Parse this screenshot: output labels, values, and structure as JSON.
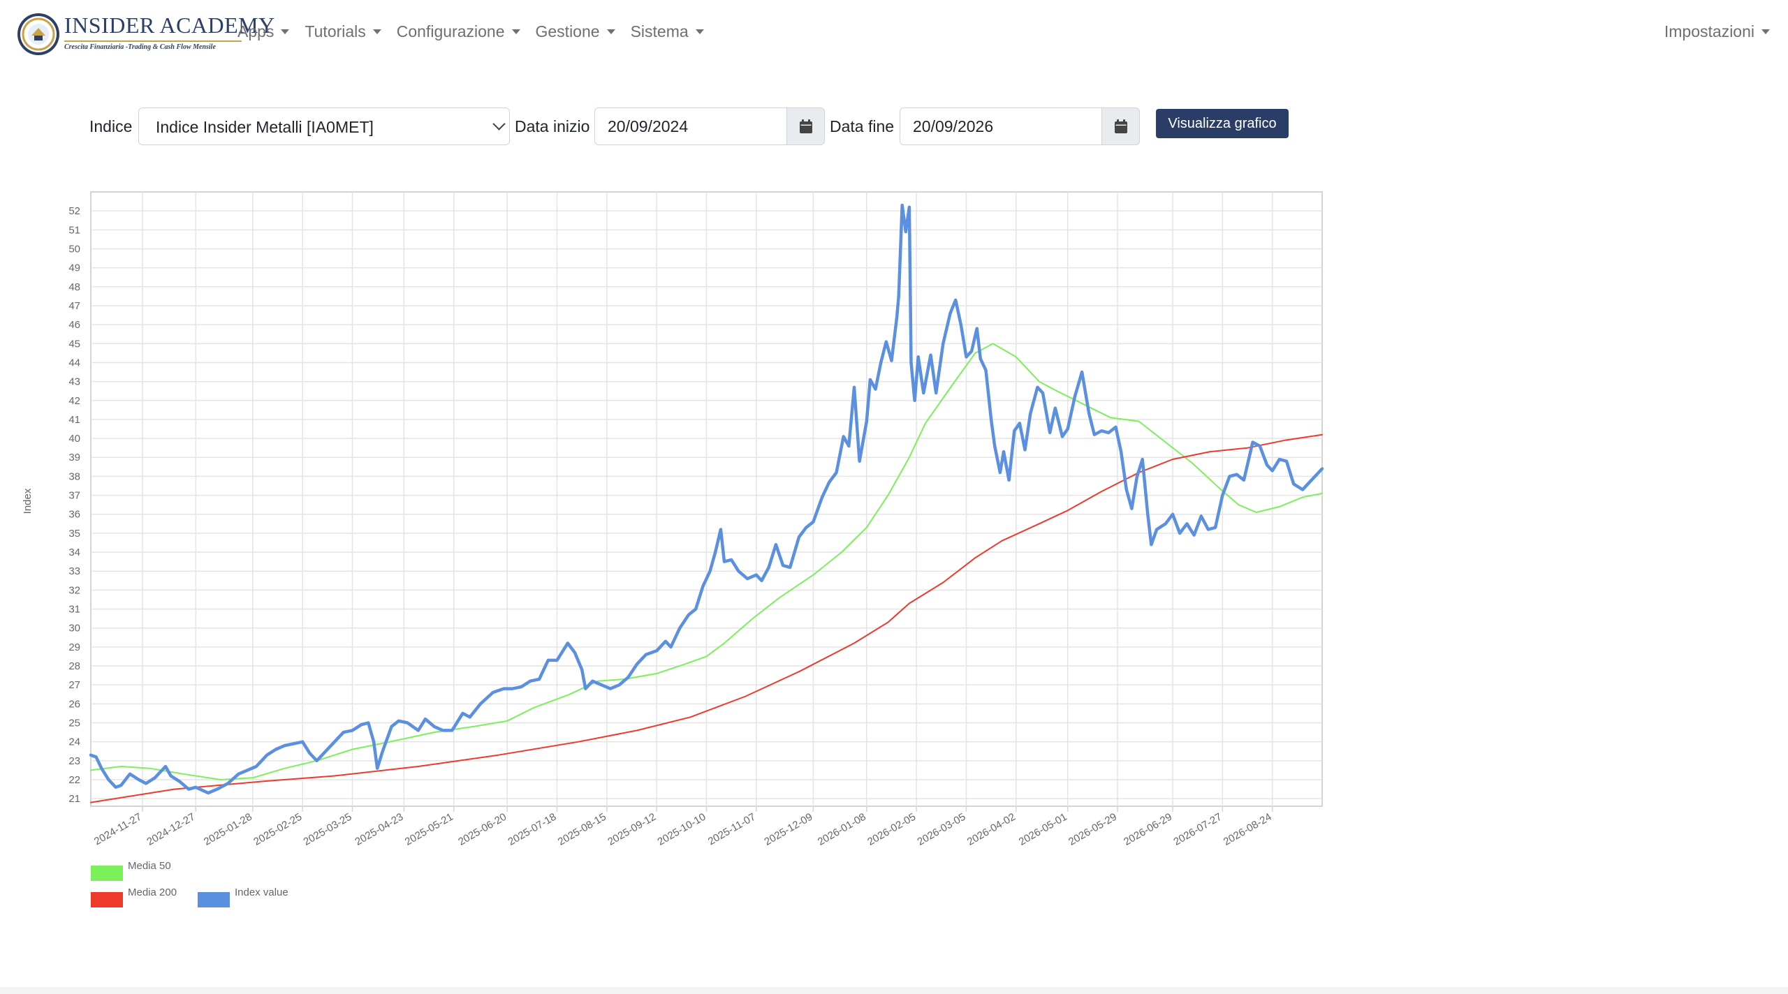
{
  "brand": {
    "name": "INSIDER ACADEMY",
    "tagline": "Crescita Finanziaria -Trading & Cash Flow Mensile"
  },
  "nav": {
    "items": [
      {
        "label": "Apps"
      },
      {
        "label": "Tutorials"
      },
      {
        "label": "Configurazione"
      },
      {
        "label": "Gestione"
      },
      {
        "label": "Sistema"
      }
    ],
    "right": {
      "label": "Impostazioni"
    }
  },
  "form": {
    "indice_label": "Indice",
    "indice_value": "Indice Insider Metalli [IA0MET]",
    "start_label": "Data inizio",
    "start_value": "20/09/2024",
    "end_label": "Data fine",
    "end_value": "20/09/2026",
    "submit_label": "Visualizza grafico"
  },
  "icons": {
    "calendar": "calendar-icon",
    "caret": "caret-down-icon",
    "select": "chevron-down-icon",
    "logo": "academy-seal-logo"
  },
  "colors": {
    "media50": "#7cf05a",
    "media200": "#ee3a2a",
    "index": "#5b8fe0",
    "button": "#2a3d66"
  },
  "chart_data": {
    "type": "line",
    "title": "",
    "ylabel": "Index",
    "ylim": [
      20.6,
      53
    ],
    "yticks": [
      21,
      22,
      23,
      24,
      25,
      26,
      27,
      28,
      29,
      30,
      31,
      32,
      33,
      34,
      35,
      36,
      37,
      38,
      39,
      40,
      41,
      42,
      43,
      44,
      45,
      46,
      47,
      48,
      49,
      50,
      51,
      52
    ],
    "xlim": [
      "2024-10-29",
      "2026-09-21"
    ],
    "x_ticks": [
      "2024-11-27",
      "2024-12-27",
      "2025-01-28",
      "2025-02-25",
      "2025-03-25",
      "2025-04-23",
      "2025-05-21",
      "2025-06-20",
      "2025-07-18",
      "2025-08-15",
      "2025-09-12",
      "2025-10-10",
      "2025-11-07",
      "2025-12-09",
      "2026-01-08",
      "2026-02-05",
      "2026-03-05",
      "2026-04-02",
      "2026-05-01",
      "2026-05-29",
      "2026-06-29",
      "2026-07-27",
      "2026-08-24"
    ],
    "grid": true,
    "legend_position": "bottom-left",
    "series": [
      {
        "name": "Media 50",
        "color": "#7cf05a",
        "points": [
          [
            "2024-10-29",
            22.5
          ],
          [
            "2024-11-15",
            22.7
          ],
          [
            "2024-12-01",
            22.6
          ],
          [
            "2024-12-20",
            22.3
          ],
          [
            "2025-01-10",
            22.0
          ],
          [
            "2025-01-28",
            22.1
          ],
          [
            "2025-02-15",
            22.6
          ],
          [
            "2025-03-05",
            23.0
          ],
          [
            "2025-03-25",
            23.6
          ],
          [
            "2025-04-15",
            24.0
          ],
          [
            "2025-05-10",
            24.5
          ],
          [
            "2025-06-01",
            24.8
          ],
          [
            "2025-06-20",
            25.1
          ],
          [
            "2025-07-05",
            25.8
          ],
          [
            "2025-07-25",
            26.5
          ],
          [
            "2025-08-10",
            27.2
          ],
          [
            "2025-08-25",
            27.3
          ],
          [
            "2025-09-12",
            27.6
          ],
          [
            "2025-09-28",
            28.1
          ],
          [
            "2025-10-10",
            28.5
          ],
          [
            "2025-10-20",
            29.2
          ],
          [
            "2025-11-05",
            30.5
          ],
          [
            "2025-11-20",
            31.6
          ],
          [
            "2025-12-09",
            32.8
          ],
          [
            "2025-12-25",
            34.0
          ],
          [
            "2026-01-08",
            35.3
          ],
          [
            "2026-01-20",
            37.0
          ],
          [
            "2026-02-01",
            39.0
          ],
          [
            "2026-02-10",
            40.8
          ],
          [
            "2026-02-25",
            42.8
          ],
          [
            "2026-03-10",
            44.5
          ],
          [
            "2026-03-20",
            45.0
          ],
          [
            "2026-04-02",
            44.3
          ],
          [
            "2026-04-15",
            43.0
          ],
          [
            "2026-04-25",
            42.5
          ],
          [
            "2026-05-10",
            41.8
          ],
          [
            "2026-05-25",
            41.1
          ],
          [
            "2026-06-10",
            40.9
          ],
          [
            "2026-06-25",
            39.8
          ],
          [
            "2026-07-10",
            38.7
          ],
          [
            "2026-07-25",
            37.4
          ],
          [
            "2026-08-05",
            36.5
          ],
          [
            "2026-08-15",
            36.1
          ],
          [
            "2026-08-28",
            36.4
          ],
          [
            "2026-09-10",
            36.9
          ],
          [
            "2026-09-21",
            37.1
          ]
        ]
      },
      {
        "name": "Media 200",
        "color": "#ee3a2a",
        "points": [
          [
            "2024-10-29",
            20.8
          ],
          [
            "2024-12-15",
            21.5
          ],
          [
            "2025-02-01",
            21.9
          ],
          [
            "2025-03-15",
            22.2
          ],
          [
            "2025-05-01",
            22.7
          ],
          [
            "2025-06-15",
            23.3
          ],
          [
            "2025-07-30",
            24.0
          ],
          [
            "2025-09-01",
            24.6
          ],
          [
            "2025-10-01",
            25.3
          ],
          [
            "2025-11-01",
            26.4
          ],
          [
            "2025-12-01",
            27.7
          ],
          [
            "2026-01-01",
            29.2
          ],
          [
            "2026-01-20",
            30.3
          ],
          [
            "2026-02-01",
            31.3
          ],
          [
            "2026-02-20",
            32.4
          ],
          [
            "2026-03-10",
            33.7
          ],
          [
            "2026-03-25",
            34.6
          ],
          [
            "2026-04-15",
            35.5
          ],
          [
            "2026-05-01",
            36.2
          ],
          [
            "2026-05-20",
            37.2
          ],
          [
            "2026-06-10",
            38.2
          ],
          [
            "2026-06-29",
            38.9
          ],
          [
            "2026-07-20",
            39.3
          ],
          [
            "2026-08-10",
            39.5
          ],
          [
            "2026-08-31",
            39.9
          ],
          [
            "2026-09-21",
            40.2
          ]
        ]
      },
      {
        "name": "Index value",
        "color": "#5b8fe0",
        "points": [
          [
            "2024-10-29",
            23.3
          ],
          [
            "2024-11-01",
            23.2
          ],
          [
            "2024-11-04",
            22.6
          ],
          [
            "2024-11-08",
            22.0
          ],
          [
            "2024-11-12",
            21.6
          ],
          [
            "2024-11-15",
            21.7
          ],
          [
            "2024-11-20",
            22.3
          ],
          [
            "2024-11-25",
            22.0
          ],
          [
            "2024-11-29",
            21.8
          ],
          [
            "2024-12-04",
            22.1
          ],
          [
            "2024-12-10",
            22.7
          ],
          [
            "2024-12-13",
            22.2
          ],
          [
            "2024-12-18",
            21.9
          ],
          [
            "2024-12-23",
            21.5
          ],
          [
            "2024-12-27",
            21.6
          ],
          [
            "2025-01-03",
            21.3
          ],
          [
            "2025-01-08",
            21.5
          ],
          [
            "2025-01-14",
            21.8
          ],
          [
            "2025-01-20",
            22.3
          ],
          [
            "2025-01-25",
            22.5
          ],
          [
            "2025-01-30",
            22.7
          ],
          [
            "2025-02-05",
            23.3
          ],
          [
            "2025-02-10",
            23.6
          ],
          [
            "2025-02-15",
            23.8
          ],
          [
            "2025-02-20",
            23.9
          ],
          [
            "2025-02-25",
            24.0
          ],
          [
            "2025-03-01",
            23.4
          ],
          [
            "2025-03-05",
            23.0
          ],
          [
            "2025-03-10",
            23.5
          ],
          [
            "2025-03-15",
            24.0
          ],
          [
            "2025-03-20",
            24.5
          ],
          [
            "2025-03-25",
            24.6
          ],
          [
            "2025-03-30",
            24.9
          ],
          [
            "2025-04-03",
            25.0
          ],
          [
            "2025-04-06",
            24.0
          ],
          [
            "2025-04-08",
            22.6
          ],
          [
            "2025-04-11",
            23.5
          ],
          [
            "2025-04-16",
            24.8
          ],
          [
            "2025-04-20",
            25.1
          ],
          [
            "2025-04-25",
            25.0
          ],
          [
            "2025-05-01",
            24.6
          ],
          [
            "2025-05-05",
            25.2
          ],
          [
            "2025-05-10",
            24.8
          ],
          [
            "2025-05-15",
            24.6
          ],
          [
            "2025-05-20",
            24.6
          ],
          [
            "2025-05-26",
            25.5
          ],
          [
            "2025-05-30",
            25.3
          ],
          [
            "2025-06-05",
            26.0
          ],
          [
            "2025-06-12",
            26.6
          ],
          [
            "2025-06-18",
            26.8
          ],
          [
            "2025-06-23",
            26.8
          ],
          [
            "2025-06-28",
            26.9
          ],
          [
            "2025-07-03",
            27.2
          ],
          [
            "2025-07-08",
            27.3
          ],
          [
            "2025-07-13",
            28.3
          ],
          [
            "2025-07-18",
            28.3
          ],
          [
            "2025-07-24",
            29.2
          ],
          [
            "2025-07-28",
            28.7
          ],
          [
            "2025-08-01",
            27.8
          ],
          [
            "2025-08-03",
            26.8
          ],
          [
            "2025-08-07",
            27.2
          ],
          [
            "2025-08-12",
            27.0
          ],
          [
            "2025-08-17",
            26.8
          ],
          [
            "2025-08-22",
            27.0
          ],
          [
            "2025-08-27",
            27.4
          ],
          [
            "2025-09-01",
            28.1
          ],
          [
            "2025-09-06",
            28.6
          ],
          [
            "2025-09-12",
            28.8
          ],
          [
            "2025-09-17",
            29.3
          ],
          [
            "2025-09-20",
            29.0
          ],
          [
            "2025-09-25",
            30.0
          ],
          [
            "2025-09-30",
            30.7
          ],
          [
            "2025-10-04",
            31.0
          ],
          [
            "2025-10-08",
            32.2
          ],
          [
            "2025-10-12",
            33.0
          ],
          [
            "2025-10-15",
            34.0
          ],
          [
            "2025-10-18",
            35.2
          ],
          [
            "2025-10-20",
            33.5
          ],
          [
            "2025-10-24",
            33.6
          ],
          [
            "2025-10-28",
            33.0
          ],
          [
            "2025-11-02",
            32.6
          ],
          [
            "2025-11-07",
            32.8
          ],
          [
            "2025-11-10",
            32.5
          ],
          [
            "2025-11-14",
            33.2
          ],
          [
            "2025-11-18",
            34.4
          ],
          [
            "2025-11-22",
            33.3
          ],
          [
            "2025-11-26",
            33.2
          ],
          [
            "2025-12-01",
            34.8
          ],
          [
            "2025-12-05",
            35.3
          ],
          [
            "2025-12-09",
            35.6
          ],
          [
            "2025-12-14",
            36.9
          ],
          [
            "2025-12-18",
            37.7
          ],
          [
            "2025-12-22",
            38.2
          ],
          [
            "2025-12-26",
            40.1
          ],
          [
            "2025-12-29",
            39.6
          ],
          [
            "2026-01-01",
            42.7
          ],
          [
            "2026-01-04",
            38.8
          ],
          [
            "2026-01-08",
            40.9
          ],
          [
            "2026-01-10",
            43.1
          ],
          [
            "2026-01-13",
            42.6
          ],
          [
            "2026-01-16",
            44.0
          ],
          [
            "2026-01-19",
            45.1
          ],
          [
            "2026-01-22",
            44.1
          ],
          [
            "2026-01-25",
            46.4
          ],
          [
            "2026-01-26",
            47.5
          ],
          [
            "2026-01-28",
            52.3
          ],
          [
            "2026-01-30",
            50.9
          ],
          [
            "2026-02-01",
            52.2
          ],
          [
            "2026-02-02",
            44.0
          ],
          [
            "2026-02-04",
            42.0
          ],
          [
            "2026-02-06",
            44.3
          ],
          [
            "2026-02-09",
            42.4
          ],
          [
            "2026-02-13",
            44.4
          ],
          [
            "2026-02-16",
            42.4
          ],
          [
            "2026-02-20",
            45.0
          ],
          [
            "2026-02-24",
            46.6
          ],
          [
            "2026-02-27",
            47.3
          ],
          [
            "2026-03-02",
            46.0
          ],
          [
            "2026-03-05",
            44.3
          ],
          [
            "2026-03-08",
            44.6
          ],
          [
            "2026-03-11",
            45.8
          ],
          [
            "2026-03-13",
            44.2
          ],
          [
            "2026-03-16",
            43.6
          ],
          [
            "2026-03-19",
            41.0
          ],
          [
            "2026-03-21",
            39.6
          ],
          [
            "2026-03-24",
            38.2
          ],
          [
            "2026-03-26",
            39.3
          ],
          [
            "2026-03-29",
            37.8
          ],
          [
            "2026-04-01",
            40.4
          ],
          [
            "2026-04-04",
            40.8
          ],
          [
            "2026-04-07",
            39.4
          ],
          [
            "2026-04-10",
            41.3
          ],
          [
            "2026-04-14",
            42.7
          ],
          [
            "2026-04-17",
            42.4
          ],
          [
            "2026-04-21",
            40.3
          ],
          [
            "2026-04-24",
            41.6
          ],
          [
            "2026-04-28",
            40.1
          ],
          [
            "2026-05-01",
            40.5
          ],
          [
            "2026-05-05",
            42.2
          ],
          [
            "2026-05-09",
            43.5
          ],
          [
            "2026-05-13",
            41.3
          ],
          [
            "2026-05-16",
            40.2
          ],
          [
            "2026-05-20",
            40.4
          ],
          [
            "2026-05-24",
            40.3
          ],
          [
            "2026-05-28",
            40.6
          ],
          [
            "2026-05-31",
            39.3
          ],
          [
            "2026-06-03",
            37.3
          ],
          [
            "2026-06-06",
            36.3
          ],
          [
            "2026-06-09",
            38.0
          ],
          [
            "2026-06-12",
            38.9
          ],
          [
            "2026-06-15",
            36.0
          ],
          [
            "2026-06-17",
            34.4
          ],
          [
            "2026-06-20",
            35.2
          ],
          [
            "2026-06-25",
            35.5
          ],
          [
            "2026-06-29",
            36.0
          ],
          [
            "2026-07-03",
            35.0
          ],
          [
            "2026-07-07",
            35.5
          ],
          [
            "2026-07-11",
            34.9
          ],
          [
            "2026-07-15",
            35.9
          ],
          [
            "2026-07-19",
            35.2
          ],
          [
            "2026-07-23",
            35.3
          ],
          [
            "2026-07-27",
            37.0
          ],
          [
            "2026-07-31",
            38.0
          ],
          [
            "2026-08-04",
            38.1
          ],
          [
            "2026-08-08",
            37.8
          ],
          [
            "2026-08-13",
            39.8
          ],
          [
            "2026-08-17",
            39.6
          ],
          [
            "2026-08-21",
            38.6
          ],
          [
            "2026-08-24",
            38.3
          ],
          [
            "2026-08-28",
            38.9
          ],
          [
            "2026-09-01",
            38.8
          ],
          [
            "2026-09-05",
            37.6
          ],
          [
            "2026-09-10",
            37.3
          ],
          [
            "2026-09-16",
            37.9
          ],
          [
            "2026-09-21",
            38.4
          ]
        ]
      }
    ]
  }
}
